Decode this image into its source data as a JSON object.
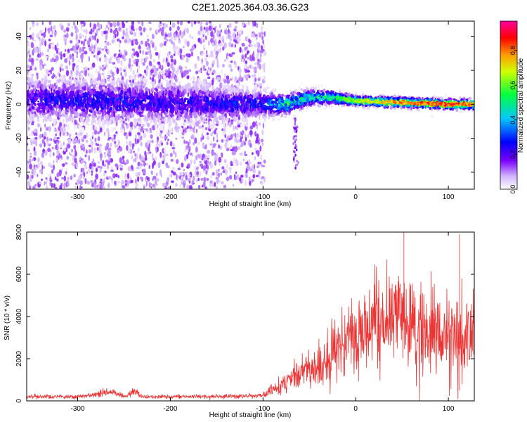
{
  "title": "C2E1.2025.364.03.36.G23",
  "colors": {
    "spectrum_low": "#d9c8f2",
    "spectrum_mid": "#00e0d0",
    "spectrum_high": "#ff2020",
    "snr_line": "#ee3333"
  },
  "chart_data": [
    {
      "type": "heatmap",
      "title": "C2E1.2025.364.03.36.G23",
      "xlabel": "Height of straight line (km)",
      "ylabel": "Frequency (Hz)",
      "xlim": [
        -355,
        128
      ],
      "ylim": [
        -50,
        49
      ],
      "x_ticks": [
        -300,
        -200,
        -100,
        0,
        100
      ],
      "y_ticks": [
        -40,
        -20,
        0,
        20,
        40
      ],
      "grid": false,
      "colorbar": {
        "label": "Normalized spectral amplitude",
        "range": [
          0.0,
          0.97
        ],
        "ticks": [
          0.0,
          0.2,
          0.4,
          0.6,
          0.8
        ],
        "colormap": "white-purple-blue-cyan-green-yellow-red-magenta"
      },
      "description_points": [
        {
          "x": -350,
          "center_hz": 3,
          "spread_hz": 12,
          "amplitude": 0.25
        },
        {
          "x": -280,
          "center_hz": 2,
          "spread_hz": 12,
          "amplitude": 0.3
        },
        {
          "x": -200,
          "center_hz": 1,
          "spread_hz": 12,
          "amplitude": 0.25
        },
        {
          "x": -100,
          "center_hz": 0,
          "spread_hz": 8,
          "amplitude": 0.3
        },
        {
          "x": -75,
          "center_hz": 0,
          "spread_hz": 6,
          "amplitude": 0.55
        },
        {
          "x": -50,
          "center_hz": 4,
          "spread_hz": 5,
          "amplitude": 0.5
        },
        {
          "x": -25,
          "center_hz": 4,
          "spread_hz": 4,
          "amplitude": 0.55
        },
        {
          "x": 0,
          "center_hz": 2,
          "spread_hz": 3,
          "amplitude": 0.7
        },
        {
          "x": 50,
          "center_hz": 1,
          "spread_hz": 3,
          "amplitude": 0.85
        },
        {
          "x": 100,
          "center_hz": 0,
          "spread_hz": 3,
          "amplitude": 0.9
        },
        {
          "x": 125,
          "center_hz": 0,
          "spread_hz": 3,
          "amplitude": 0.85
        }
      ]
    },
    {
      "type": "line",
      "xlabel": "Height of straight line (km)",
      "ylabel": "SNR (10 * v/v)",
      "xlim": [
        -355,
        128
      ],
      "ylim": [
        0,
        8000
      ],
      "x_ticks": [
        -300,
        -200,
        -100,
        0,
        100
      ],
      "y_ticks": [
        0,
        2000,
        4000,
        6000,
        8000
      ],
      "grid": false,
      "series": [
        {
          "x": [
            -355,
            -300,
            -262,
            -250,
            -238,
            -230,
            -200,
            -150,
            -110,
            -100,
            -80,
            -70,
            -60,
            -50,
            -40,
            -30,
            -20,
            -10,
            0,
            10,
            20,
            30,
            40,
            50,
            60,
            70,
            80,
            90,
            100,
            110,
            112,
            120,
            128
          ],
          "y": [
            220,
            190,
            420,
            200,
            450,
            200,
            200,
            210,
            230,
            250,
            700,
            1100,
            1300,
            1500,
            1700,
            1900,
            2300,
            2700,
            3000,
            3300,
            3600,
            3700,
            3750,
            3750,
            3650,
            3500,
            3400,
            3300,
            3250,
            3200,
            2700,
            3200,
            3300
          ]
        }
      ],
      "annotations": [
        {
          "x": 52,
          "y": 8000,
          "note": ""
        },
        {
          "x": 112,
          "y": 7900,
          "note": ""
        },
        {
          "x": 112,
          "y": 500,
          "note": ""
        }
      ]
    }
  ]
}
